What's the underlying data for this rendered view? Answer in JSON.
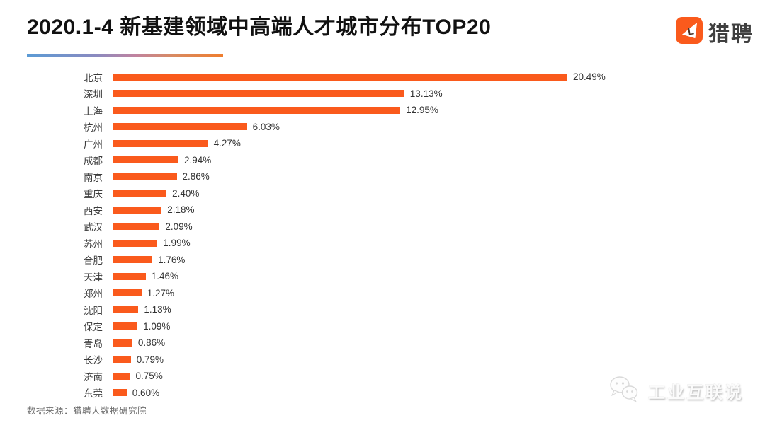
{
  "header": {
    "title": "2020.1-4 新基建领域中高端人才城市分布TOP20",
    "logo_text": "猎聘"
  },
  "chart_data": {
    "type": "bar",
    "orientation": "horizontal",
    "title": "2020.1-4 新基建领域中高端人才城市分布TOP20",
    "xlabel": "",
    "ylabel": "",
    "xlim": [
      0,
      20.49
    ],
    "grid": false,
    "legend": false,
    "bar_color": "#FA5A1C",
    "categories": [
      "北京",
      "深圳",
      "上海",
      "杭州",
      "广州",
      "成都",
      "南京",
      "重庆",
      "西安",
      "武汉",
      "苏州",
      "合肥",
      "天津",
      "郑州",
      "沈阳",
      "保定",
      "青岛",
      "长沙",
      "济南",
      "东莞"
    ],
    "values": [
      20.49,
      13.13,
      12.95,
      6.03,
      4.27,
      2.94,
      2.86,
      2.4,
      2.18,
      2.09,
      1.99,
      1.76,
      1.46,
      1.27,
      1.13,
      1.09,
      0.86,
      0.79,
      0.75,
      0.6
    ],
    "labels": [
      "20.49%",
      "13.13%",
      "12.95%",
      "6.03%",
      "4.27%",
      "2.94%",
      "2.86%",
      "2.40%",
      "2.18%",
      "2.09%",
      "1.99%",
      "1.76%",
      "1.46%",
      "1.27%",
      "1.13%",
      "1.09%",
      "0.86%",
      "0.79%",
      "0.75%",
      "0.60%"
    ]
  },
  "footer": {
    "source": "数据来源：猎聘大数据研究院"
  },
  "watermark": {
    "text": "工业互联说",
    "icon": "wechat-chat-bubbles-icon"
  },
  "colors": {
    "accent_orange": "#FA5A1C",
    "underline_gradient_start": "#5B9BD5",
    "underline_gradient_end": "#EF7D2E",
    "title_text": "#111111",
    "label_text": "#3C3C3C",
    "source_text": "#6E6E6E"
  }
}
